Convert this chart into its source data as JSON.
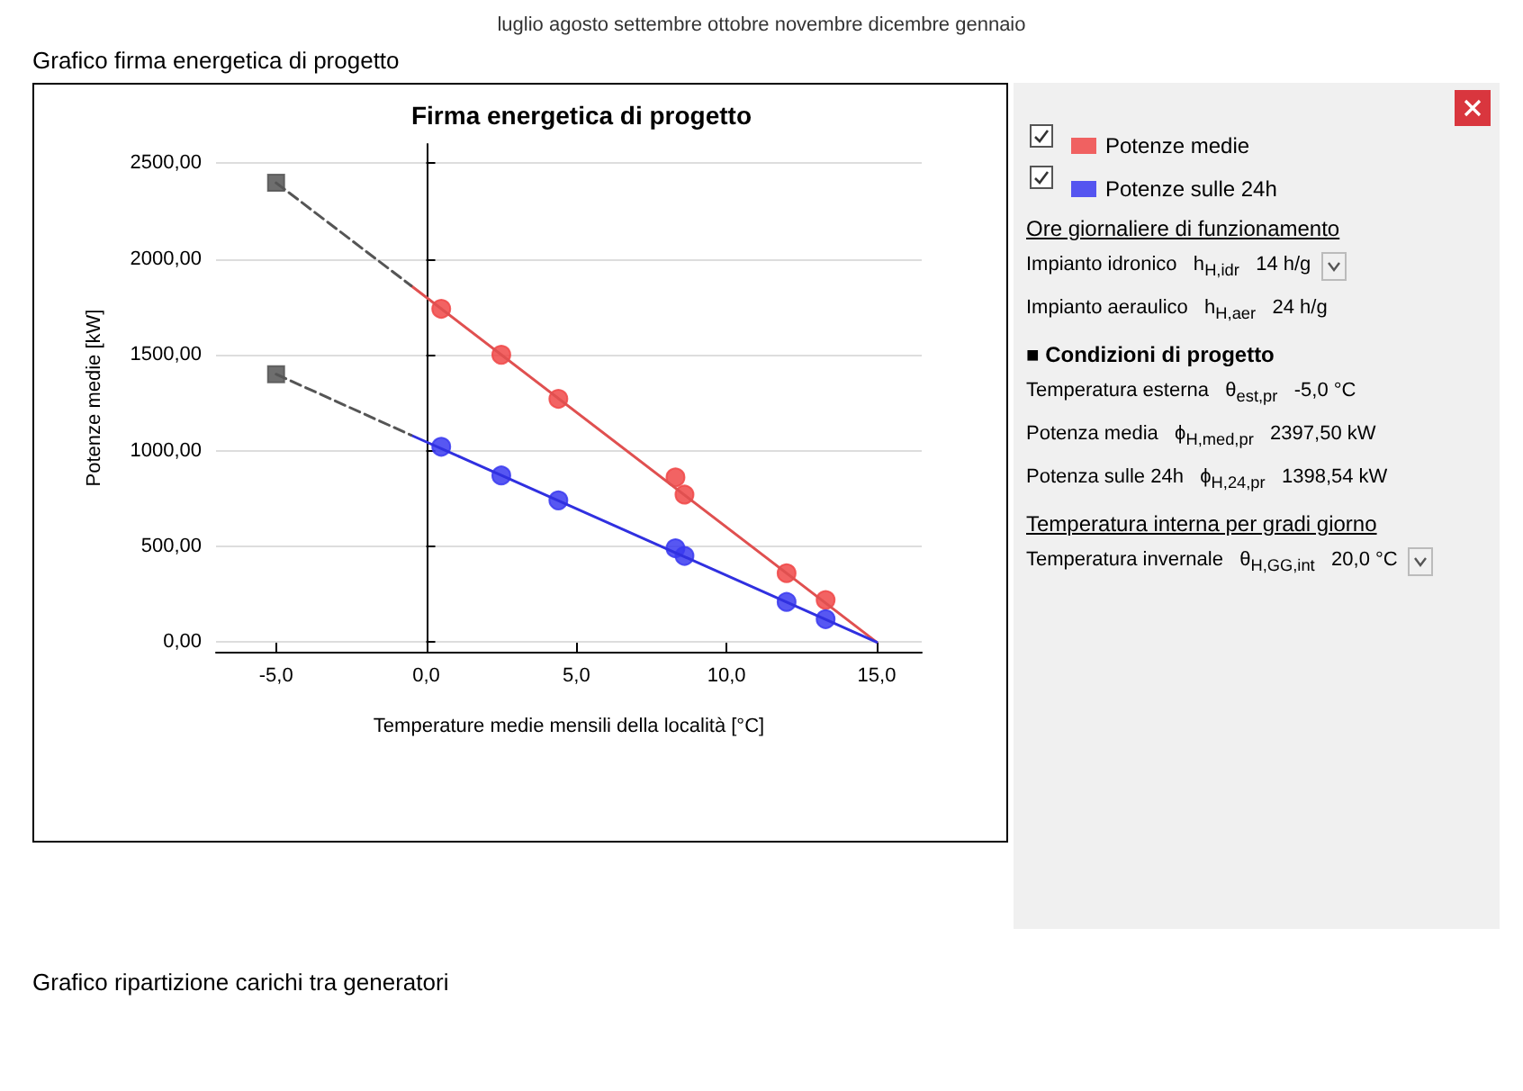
{
  "chart_data": {
    "type": "scatter",
    "title": "Firma energetica di progetto",
    "subtitle": "Grafico firma energetica di progetto",
    "xlabel": "Temperature medie mensili della località [°C]",
    "ylabel": "Potenze medie [kW]",
    "xlim": [
      -7,
      16.5
    ],
    "xticks": [
      {
        "value": -5,
        "label": "-5,0"
      },
      {
        "value": 0,
        "label": "0,0"
      },
      {
        "value": 5,
        "label": "5,0"
      },
      {
        "value": 10,
        "label": "10,0"
      },
      {
        "value": 15,
        "label": "15,0"
      }
    ],
    "ylim": [
      -50,
      2600
    ],
    "yticks": [
      {
        "value": 0,
        "label": "0,00"
      },
      {
        "value": 500,
        "label": "500,00"
      },
      {
        "value": 1000,
        "label": "1000,00"
      },
      {
        "value": 1500,
        "label": "1500,00"
      },
      {
        "value": 2000,
        "label": "2000,00"
      },
      {
        "value": 2500,
        "label": "2500,00"
      }
    ],
    "grid": "y",
    "legend": "right",
    "marker": "circle",
    "series": [
      {
        "name": "Potenze medie",
        "color": "#f04848",
        "x": [
          0.5,
          2.5,
          4.4,
          8.3,
          8.6,
          12,
          13.3
        ],
        "values": [
          1740,
          1500,
          1270,
          860,
          770,
          360,
          220
        ]
      },
      {
        "name": "Potenze sulle 24h",
        "color": "#3a3af0",
        "x": [
          0.5,
          2.5,
          4.4,
          8.3,
          8.6,
          12,
          13.3
        ],
        "values": [
          1020,
          870,
          740,
          490,
          450,
          210,
          120
        ]
      },
      {
        "type": "line",
        "color": "#e05050",
        "line_style": "solid",
        "marker": "none",
        "x": [
          -0.5,
          15
        ],
        "values": [
          1860,
          0
        ]
      },
      {
        "type": "line",
        "color": "#3030e0",
        "line_style": "solid",
        "marker": "none",
        "x": [
          -0.5,
          15
        ],
        "values": [
          1080,
          0
        ]
      },
      {
        "type": "line",
        "color": "#555555",
        "line_style": "dashed",
        "marker": "none",
        "x": [
          -5,
          -0.5
        ],
        "values": [
          2397.5,
          1860
        ]
      },
      {
        "type": "line",
        "color": "#555555",
        "line_style": "dashed",
        "marker": "none",
        "x": [
          -5,
          -0.5
        ],
        "values": [
          1398.54,
          1080
        ]
      },
      {
        "type": "scatter",
        "color": "#555555",
        "marker": "square",
        "x": [
          -5,
          -5
        ],
        "values": [
          2397.5,
          1398.54
        ]
      }
    ],
    "annotations": [
      "Ore giornaliere di funzionamento",
      "Impianto idronico   h$_{H,idr}$   14 h/g",
      "Impianto aeraulico   h$_{H,aer}$   24 h/g",
      "■ Condizioni di progetto",
      "Temperatura esterna   θ$_{est,pr}$   -5,0 °C",
      "Potenza media   ϕ$_{H,med,pr}$   2397,50 kW",
      "Potenza sulle 24h   ϕ$_{H,24,pr}$   1398,54 kW",
      "Temperatura interna per gradi giorno",
      "Temperatura invernale   θ$_{H,GG,int}$   20,0 °C",
      "luglio  agosto  settembre  ottobre  novembre  dicembre  gennaio",
      "Grafico ripartizione carichi tra generatori"
    ]
  }
}
